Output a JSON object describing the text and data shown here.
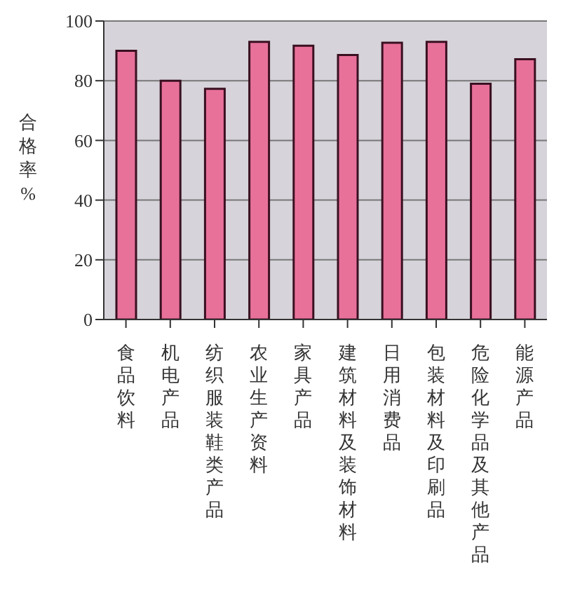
{
  "chart_data": {
    "type": "bar",
    "ylabel": "合格率%",
    "categories": [
      "食品饮料",
      "机电产品",
      "纺织服装鞋类产品",
      "农业生产资料",
      "家具产品",
      "建筑材料及装饰材料",
      "日用消费品",
      "包装材料及印刷品",
      "危险化学品及其他产品",
      "能源产品"
    ],
    "values": [
      90,
      80,
      77.3,
      93,
      91.7,
      88.6,
      92.7,
      93,
      79,
      87.2
    ],
    "color": "#e8719a",
    "ylim": [
      0,
      100
    ],
    "yticks": [
      0,
      20,
      40,
      60,
      80,
      100
    ],
    "grid": "y"
  }
}
